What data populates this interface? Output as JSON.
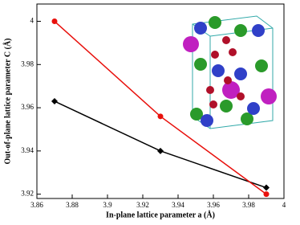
{
  "chart_data": {
    "type": "line",
    "x_label": "In-plane lattice parameter a (Å)",
    "y_label": "Out-of-plane lattice parameter C (Å)",
    "x": [
      3.87,
      3.93,
      3.99
    ],
    "series": [
      {
        "color": "#000000",
        "marker": "diamond",
        "values": [
          3.963,
          3.94,
          3.923
        ]
      },
      {
        "color": "#e8100c",
        "marker": "circle",
        "values": [
          4.0,
          3.956,
          3.92
        ]
      }
    ],
    "xlim": [
      3.86,
      4.0
    ],
    "xticks": [
      3.86,
      3.88,
      3.9,
      3.92,
      3.94,
      3.96,
      3.98,
      4
    ],
    "ylim": [
      3.918,
      4.008
    ],
    "yticks": [
      3.92,
      3.94,
      3.96,
      3.98,
      4
    ]
  }
}
